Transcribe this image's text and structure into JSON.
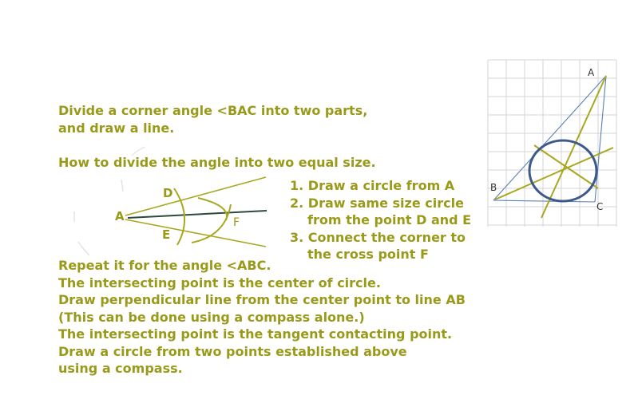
{
  "intro": {
    "line1": "Divide a corner angle <BAC into two parts,",
    "line2": "and draw a line."
  },
  "how_to": "How to divide the angle into two equal size.",
  "steps": {
    "s1": "1. Draw a circle from A",
    "s2a": "2. Draw same size circle",
    "s2b": "from the point D and E",
    "s3a": "3. Connect the corner to",
    "s3b": "the cross point F"
  },
  "bisector_figure": {
    "label_a": "A",
    "label_d": "D",
    "label_e": "E",
    "label_f": "F"
  },
  "triangle_figure": {
    "label_a": "A",
    "label_b": "B",
    "label_c": "C"
  },
  "instructions": [
    "Repeat it for the angle <ABC.",
    "The intersecting point is the center of circle.",
    "Draw perpendicular line from the center point to line AB",
    "(This can be done using a compass alone.)",
    "The intersecting point is the tangent contacting point.",
    "Draw a circle from two points established above",
    "using a compass."
  ],
  "colors": {
    "olive": "#9a9a1a",
    "dark_line": "#2f4a3a",
    "triangle_blue": "#5a7fb5",
    "circle_navy": "#3d5a8a",
    "grid": "#d4d4d4"
  }
}
